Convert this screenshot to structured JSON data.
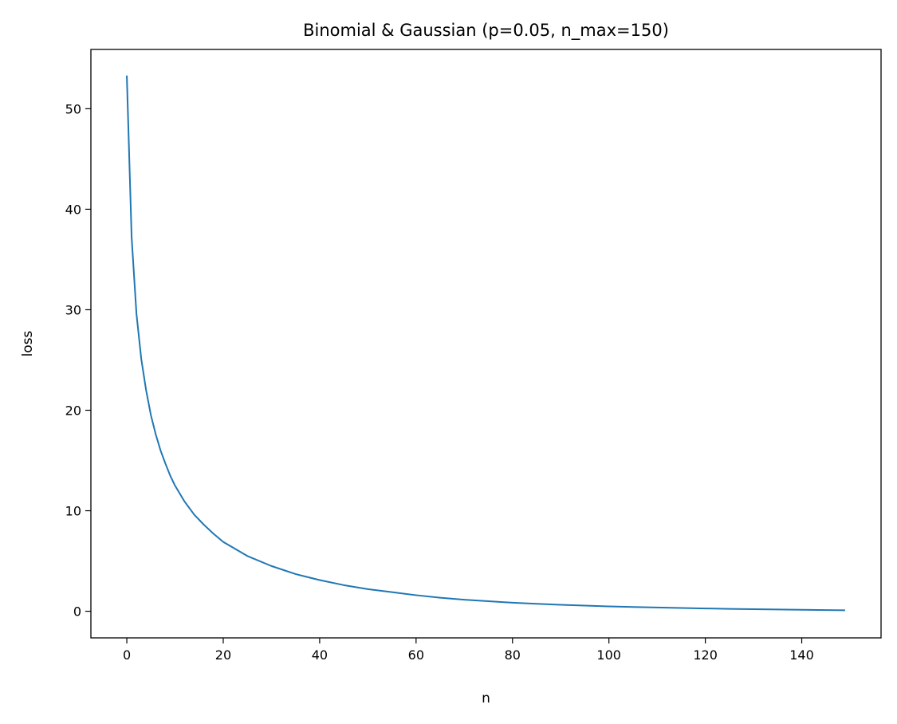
{
  "chart_data": {
    "type": "line",
    "title": "Binomial & Gaussian (p=0.05, n_max=150)",
    "xlabel": "n",
    "ylabel": "loss",
    "xlim": [
      -7.45,
      156.45
    ],
    "ylim": [
      -2.65,
      55.9
    ],
    "xticks": [
      0,
      20,
      40,
      60,
      80,
      100,
      120,
      140
    ],
    "yticks": [
      0,
      10,
      20,
      30,
      40,
      50
    ],
    "grid": false,
    "legend": "none",
    "series": [
      {
        "color": "#1f77b4",
        "x": [
          0,
          1,
          2,
          3,
          4,
          5,
          6,
          7,
          8,
          9,
          10,
          12,
          14,
          16,
          18,
          20,
          25,
          30,
          35,
          40,
          45,
          50,
          55,
          60,
          65,
          70,
          75,
          80,
          85,
          90,
          95,
          100,
          105,
          110,
          115,
          120,
          125,
          130,
          135,
          140,
          145,
          149
        ],
        "values": [
          53.3,
          37.2,
          29.6,
          25.1,
          22.0,
          19.5,
          17.6,
          16.0,
          14.7,
          13.5,
          12.5,
          10.9,
          9.6,
          8.6,
          7.7,
          6.9,
          5.5,
          4.5,
          3.7,
          3.1,
          2.6,
          2.2,
          1.9,
          1.6,
          1.35,
          1.15,
          1.0,
          0.85,
          0.74,
          0.64,
          0.56,
          0.48,
          0.42,
          0.37,
          0.32,
          0.28,
          0.24,
          0.21,
          0.18,
          0.15,
          0.12,
          0.1
        ]
      }
    ]
  }
}
